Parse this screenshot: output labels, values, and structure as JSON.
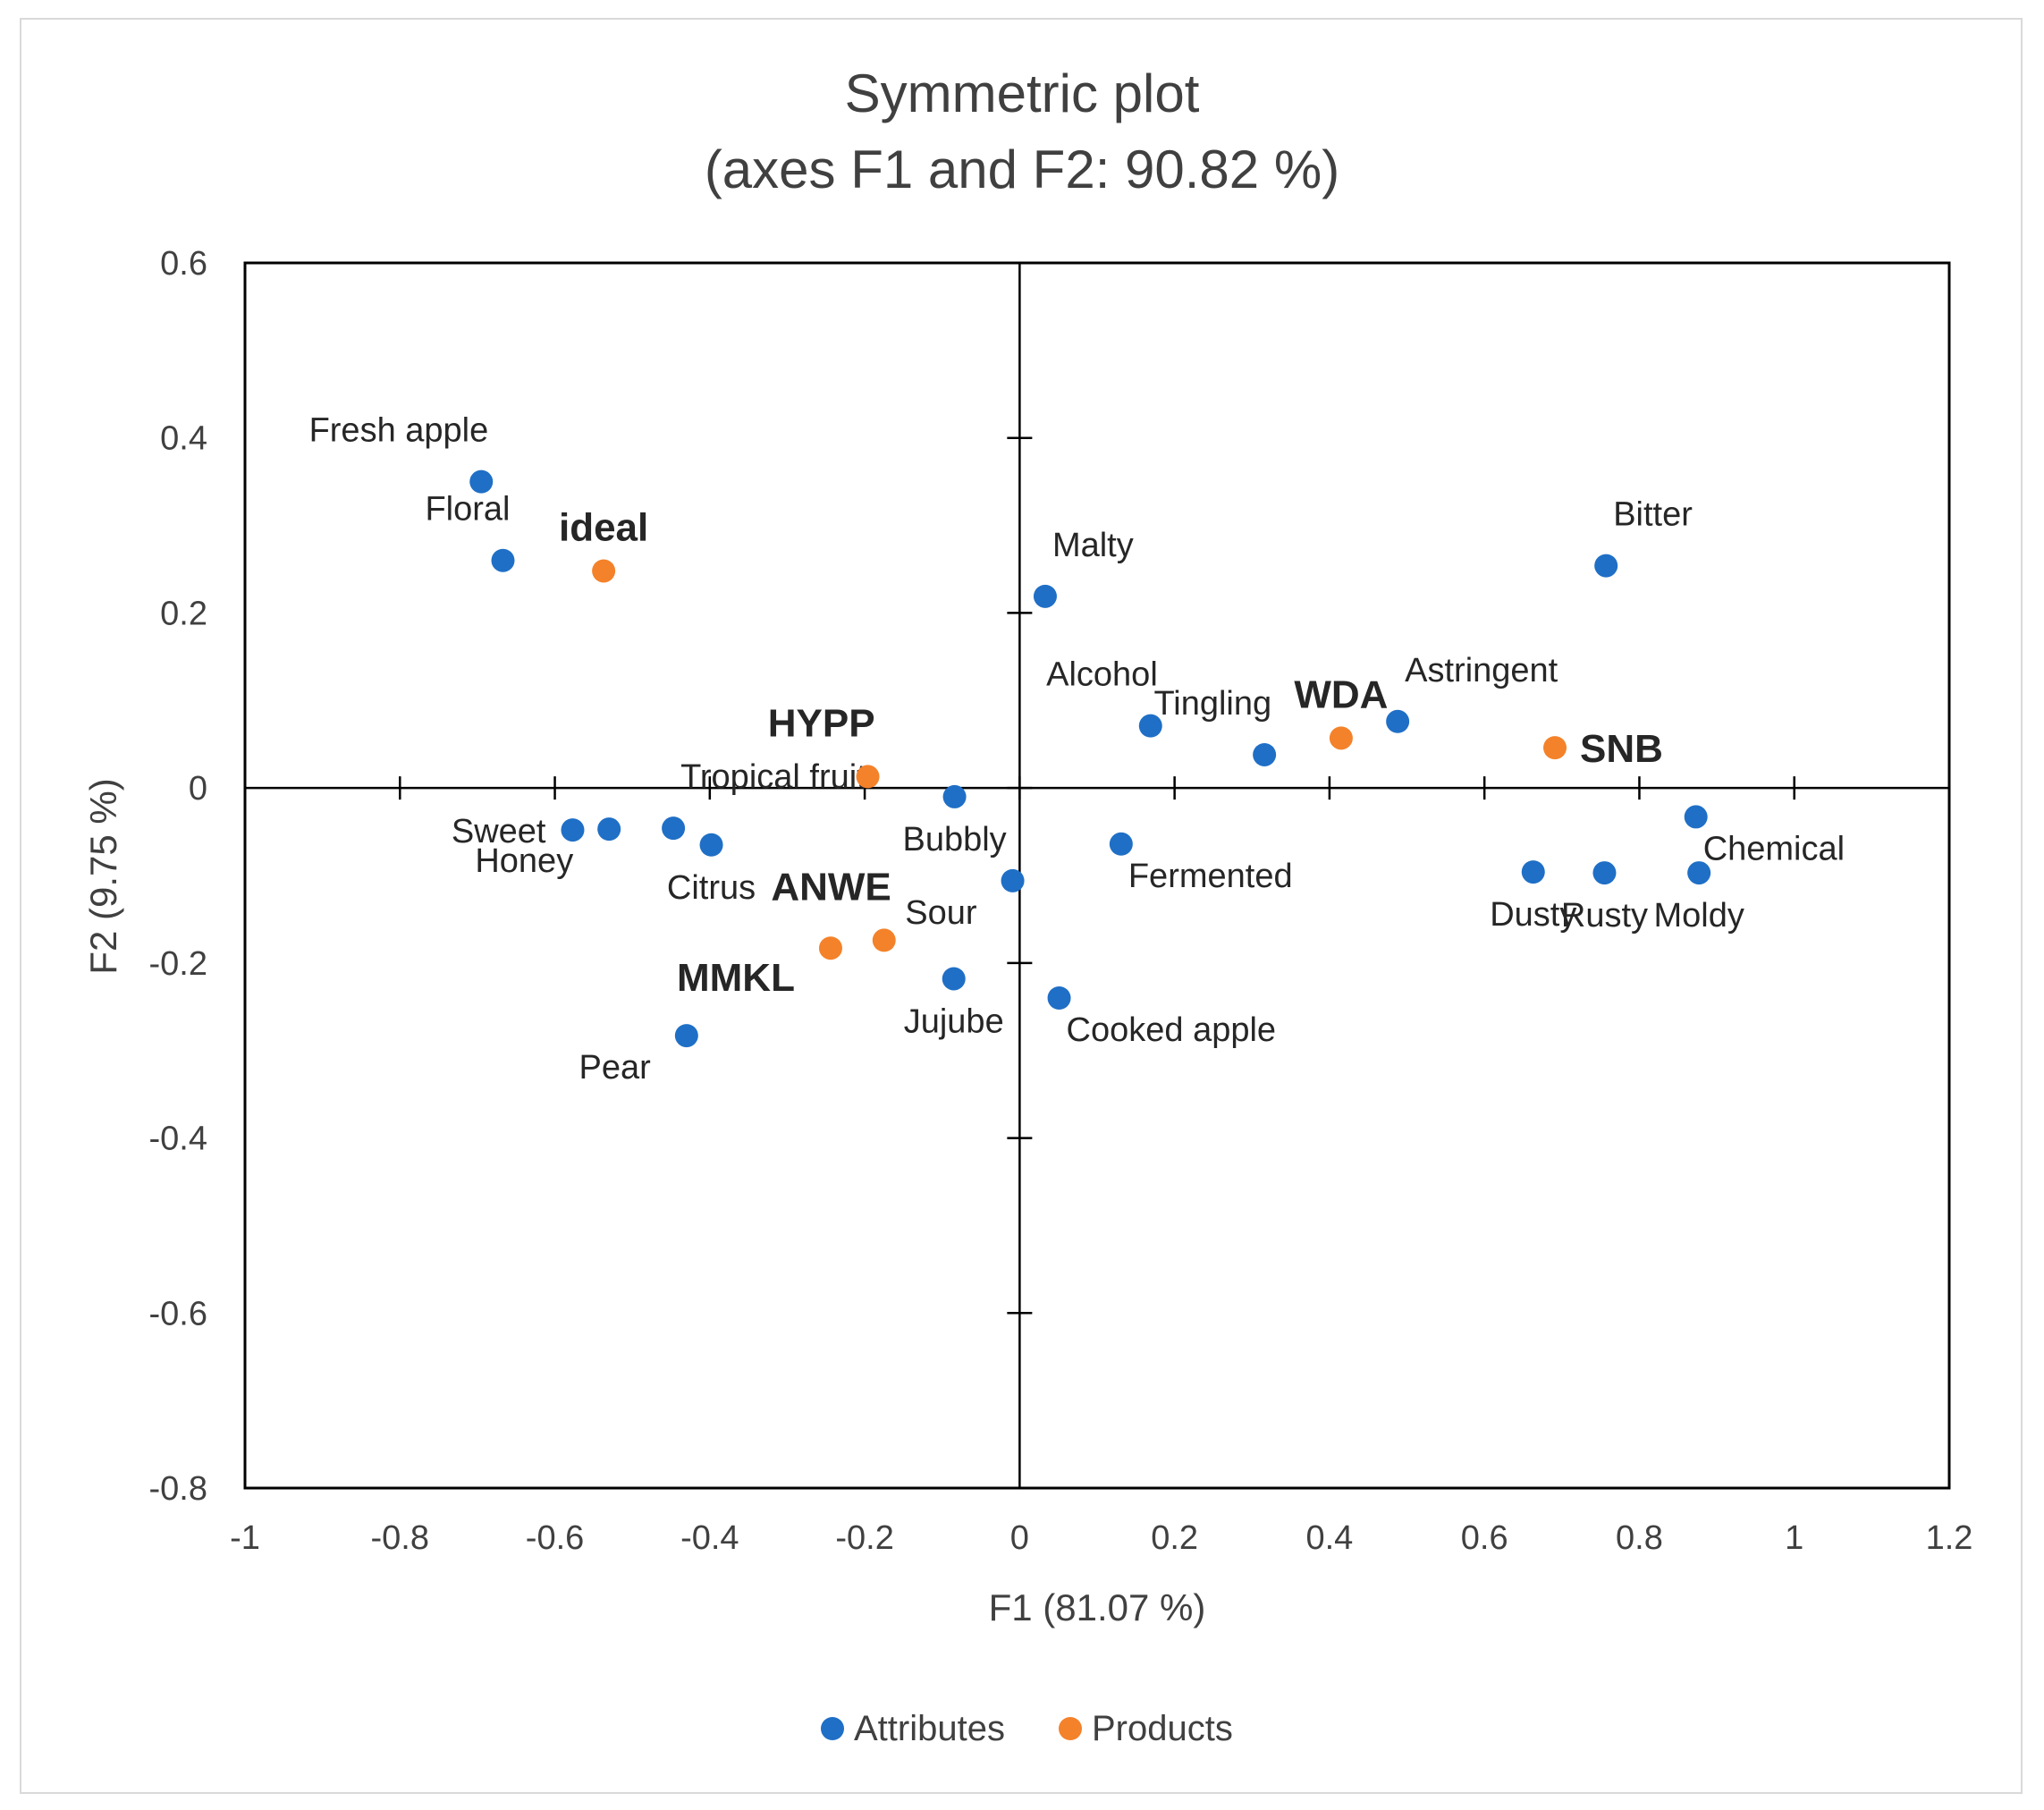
{
  "chart_data": {
    "type": "scatter",
    "title_line1": "Symmetric plot",
    "title_line2": "(axes F1 and F2: 90.82 %)",
    "xlabel": "F1 (81.07 %)",
    "ylabel": "F2 (9.75 %)",
    "xlim": [
      -1,
      1.2
    ],
    "ylim": [
      -0.8,
      0.6
    ],
    "x_ticks": [
      "-1",
      "-0.8",
      "-0.6",
      "-0.4",
      "-0.2",
      "0",
      "0.2",
      "0.4",
      "0.6",
      "0.8",
      "1",
      "1.2"
    ],
    "x_tick_values": [
      -1,
      -0.8,
      -0.6,
      -0.4,
      -0.2,
      0,
      0.2,
      0.4,
      0.6,
      0.8,
      1,
      1.2
    ],
    "y_ticks": [
      "0.6",
      "0.4",
      "0.2",
      "0",
      "-0.2",
      "-0.4",
      "-0.6",
      "-0.8"
    ],
    "y_tick_values": [
      0.6,
      0.4,
      0.2,
      0,
      -0.2,
      -0.4,
      -0.6,
      -0.8
    ],
    "legend": [
      {
        "name": "Attributes",
        "color": "#1f6fc6"
      },
      {
        "name": "Products",
        "color": "#f4822a"
      }
    ],
    "series": [
      {
        "name": "Attributes",
        "color": "#1f6fc6",
        "points": [
          {
            "label": "Fresh apple",
            "x": -0.695,
            "y": 0.35,
            "label_pos": "above-left"
          },
          {
            "label": "Floral",
            "x": -0.667,
            "y": 0.26,
            "label_pos": "above-left"
          },
          {
            "label": "Malty",
            "x": 0.033,
            "y": 0.219,
            "label_pos": "above-right"
          },
          {
            "label": "Bitter",
            "x": 0.757,
            "y": 0.254,
            "label_pos": "above-right"
          },
          {
            "label": "Alcohol",
            "x": 0.169,
            "y": 0.071,
            "label_pos": "above-left"
          },
          {
            "label": "Tingling",
            "x": 0.316,
            "y": 0.038,
            "label_pos": "above-left"
          },
          {
            "label": "Astringent",
            "x": 0.488,
            "y": 0.076,
            "label_pos": "above-right"
          },
          {
            "label": "Tropical fruit",
            "x": -0.447,
            "y": -0.046,
            "label_pos": "above-right"
          },
          {
            "label": "Sweet",
            "x": -0.577,
            "y": -0.048,
            "label_pos": "left"
          },
          {
            "label": "Honey",
            "x": -0.53,
            "y": -0.047,
            "label_pos": "below-left"
          },
          {
            "label": "Citrus",
            "x": -0.398,
            "y": -0.065,
            "label_pos": "below"
          },
          {
            "label": "Bubbly",
            "x": -0.084,
            "y": -0.01,
            "label_pos": "below"
          },
          {
            "label": "Sour",
            "x": -0.009,
            "y": -0.106,
            "label_pos": "below-left"
          },
          {
            "label": "Fermented",
            "x": 0.131,
            "y": -0.064,
            "label_pos": "below-right"
          },
          {
            "label": "Chemical",
            "x": 0.873,
            "y": -0.033,
            "label_pos": "below-right"
          },
          {
            "label": "Dusty",
            "x": 0.663,
            "y": -0.096,
            "label_pos": "below"
          },
          {
            "label": "Rusty",
            "x": 0.755,
            "y": -0.097,
            "label_pos": "below"
          },
          {
            "label": "Moldy",
            "x": 0.877,
            "y": -0.097,
            "label_pos": "below"
          },
          {
            "label": "Jujube",
            "x": -0.085,
            "y": -0.218,
            "label_pos": "below"
          },
          {
            "label": "Cooked apple",
            "x": 0.051,
            "y": -0.24,
            "label_pos": "below-right"
          },
          {
            "label": "Pear",
            "x": -0.43,
            "y": -0.283,
            "label_pos": "below-left"
          }
        ]
      },
      {
        "name": "Products",
        "color": "#f4822a",
        "points": [
          {
            "label": "ideal",
            "x": -0.537,
            "y": 0.248,
            "label_pos": "above"
          },
          {
            "label": "HYPP",
            "x": -0.196,
            "y": 0.013,
            "label_pos": "above-left"
          },
          {
            "label": "WDA",
            "x": 0.415,
            "y": 0.057,
            "label_pos": "above"
          },
          {
            "label": "SNB",
            "x": 0.691,
            "y": 0.046,
            "label_pos": "right"
          },
          {
            "label": "ANWE",
            "x": -0.175,
            "y": -0.174,
            "label_pos": "above-left"
          },
          {
            "label": "MMKL",
            "x": -0.244,
            "y": -0.183,
            "label_pos": "below-left"
          }
        ]
      }
    ]
  }
}
